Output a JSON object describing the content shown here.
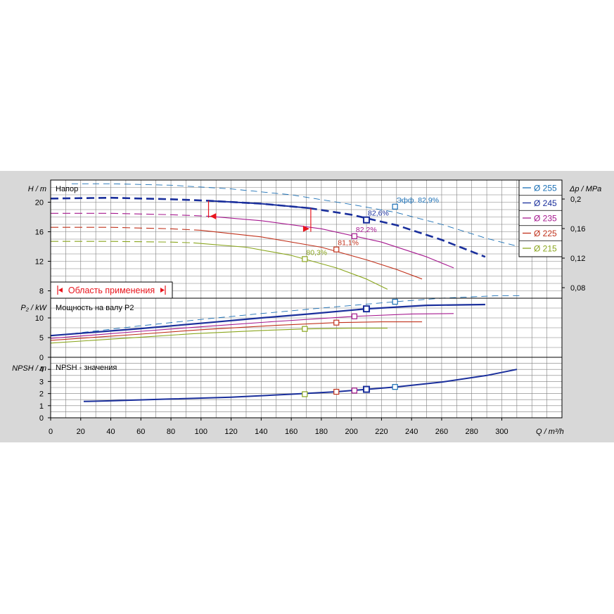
{
  "colors": {
    "panel_bg": "#d8d8d8",
    "plot_bg": "#ffffff",
    "grid": "#7f7f7f",
    "range_red": "#e8141c"
  },
  "chart_data": {
    "type": "line",
    "title": "",
    "xlabel": "Q / m³/h",
    "x_ticks": [
      0,
      20,
      40,
      60,
      80,
      100,
      120,
      140,
      160,
      180,
      200,
      220,
      240,
      260,
      280,
      300
    ],
    "xlim": [
      0,
      340
    ],
    "grid": true,
    "legend_position": "top-right",
    "legend": [
      {
        "label": "Ø 255",
        "color": "#1a6fb5"
      },
      {
        "label": "Ø 245",
        "color": "#1a2f9c"
      },
      {
        "label": "Ø 235",
        "color": "#a6198f"
      },
      {
        "label": "Ø 225",
        "color": "#c1321c"
      },
      {
        "label": "Ø 215",
        "color": "#8aa61e"
      }
    ],
    "head": {
      "label": "H / m",
      "panel_title": "Напор",
      "ylim": [
        7,
        23
      ],
      "y_ticks": [
        8,
        12,
        16,
        20
      ],
      "right_label": "Δp / MPa",
      "right_ticks": [
        "0,08",
        "0,12",
        "0,16",
        "0,2"
      ],
      "series": [
        {
          "name": "Ø 255",
          "color": "#1a6fb5",
          "dash": "thin",
          "x": [
            14,
            40,
            80,
            120,
            160,
            200,
            230,
            260,
            290,
            315
          ],
          "y": [
            22.5,
            22.5,
            22.3,
            21.8,
            21.0,
            19.7,
            18.6,
            17.0,
            15.1,
            13.8
          ]
        },
        {
          "name": "Ø 245",
          "color": "#1a2f9c",
          "dash": "dashed",
          "x": [
            0,
            40,
            80,
            105,
            140,
            172
          ],
          "y": [
            20.5,
            20.6,
            20.4,
            20.2,
            19.8,
            19.2
          ]
        },
        {
          "name": "Ø 245",
          "color": "#1a2f9c",
          "dash": "solid",
          "x": [
            105,
            140,
            172
          ],
          "y": [
            20.2,
            19.8,
            19.2
          ]
        },
        {
          "name": "Ø 245",
          "color": "#1a2f9c",
          "dash": "dashed",
          "x": [
            172,
            200,
            230,
            260,
            289
          ],
          "y": [
            19.2,
            18.3,
            16.9,
            14.9,
            12.6
          ]
        },
        {
          "name": "Ø 235",
          "color": "#a6198f",
          "dash": "dashed",
          "x": [
            0,
            40,
            80,
            105
          ],
          "y": [
            18.5,
            18.5,
            18.3,
            18.1
          ]
        },
        {
          "name": "Ø 235",
          "color": "#a6198f",
          "dash": "solid",
          "x": [
            105,
            140,
            180,
            220,
            250,
            268
          ],
          "y": [
            18.1,
            17.5,
            16.4,
            14.6,
            12.6,
            11.1
          ]
        },
        {
          "name": "Ø 225",
          "color": "#c1321c",
          "dash": "dashed",
          "x": [
            0,
            40,
            80,
            100
          ],
          "y": [
            16.6,
            16.6,
            16.4,
            16.2
          ]
        },
        {
          "name": "Ø 225",
          "color": "#c1321c",
          "dash": "solid",
          "x": [
            100,
            140,
            180,
            210,
            230,
            247
          ],
          "y": [
            16.2,
            15.3,
            13.9,
            12.2,
            10.9,
            9.6
          ]
        },
        {
          "name": "Ø 215",
          "color": "#8aa61e",
          "dash": "dashed",
          "x": [
            0,
            40,
            80,
            95
          ],
          "y": [
            14.7,
            14.7,
            14.6,
            14.5
          ]
        },
        {
          "name": "Ø 215",
          "color": "#8aa61e",
          "dash": "solid",
          "x": [
            95,
            130,
            160,
            190,
            210,
            224
          ],
          "y": [
            14.5,
            13.9,
            12.8,
            11.1,
            9.6,
            8.2
          ]
        }
      ],
      "duty_points": [
        {
          "x": 229,
          "y": 19.4,
          "label": "Эфф.   82,9%",
          "color": "#1a6fb5",
          "big": false
        },
        {
          "x": 210,
          "y": 17.6,
          "label": "82,6%",
          "color": "#1a2f9c",
          "big": true
        },
        {
          "x": 202,
          "y": 15.4,
          "label": "82,2%",
          "color": "#a6198f",
          "big": false
        },
        {
          "x": 190,
          "y": 13.6,
          "label": "81,1%",
          "color": "#c1321c",
          "big": false
        },
        {
          "x": 169,
          "y": 12.3,
          "label": "80,3%",
          "color": "#8aa61e",
          "big": false
        }
      ],
      "operating_range": {
        "label": "Область применения",
        "q_min": 105,
        "q_max": 173
      }
    },
    "power": {
      "label": "P₂ / kW",
      "panel_title": "Мощность на валу P2",
      "ylim": [
        0,
        15
      ],
      "y_ticks": [
        0,
        5,
        10
      ],
      "series": [
        {
          "name": "Ø 255",
          "color": "#1a6fb5",
          "x": [
            14,
            60,
            100,
            140,
            180,
            229,
            260,
            295,
            312
          ],
          "y": [
            6.0,
            8.0,
            9.6,
            11.1,
            12.5,
            14.1,
            15.0,
            15.6,
            15.6
          ]
        },
        {
          "name": "Ø 245",
          "color": "#1a2f9c",
          "x": [
            0,
            60,
            105,
            140,
            172,
            210,
            250,
            289
          ],
          "y": [
            5.5,
            7.3,
            8.8,
            10.0,
            11.0,
            12.3,
            13.2,
            13.4
          ]
        },
        {
          "name": "Ø 235",
          "color": "#a6198f",
          "x": [
            0,
            60,
            105,
            150,
            202,
            240,
            268
          ],
          "y": [
            4.8,
            6.6,
            7.9,
            9.1,
            10.4,
            11.0,
            11.1
          ]
        },
        {
          "name": "Ø 225",
          "color": "#c1321c",
          "x": [
            0,
            60,
            100,
            150,
            190,
            220,
            247
          ],
          "y": [
            4.3,
            5.9,
            7.0,
            8.1,
            8.8,
            9.0,
            9.0
          ]
        },
        {
          "name": "Ø 215",
          "color": "#8aa61e",
          "x": [
            0,
            60,
            95,
            140,
            169,
            200,
            224
          ],
          "y": [
            3.6,
            5.1,
            6.0,
            6.8,
            7.2,
            7.4,
            7.4
          ]
        }
      ],
      "duty_points": [
        {
          "x": 229,
          "y": 14.1,
          "color": "#1a6fb5",
          "big": false
        },
        {
          "x": 210,
          "y": 12.3,
          "color": "#1a2f9c",
          "big": true
        },
        {
          "x": 202,
          "y": 10.4,
          "color": "#a6198f",
          "big": false
        },
        {
          "x": 190,
          "y": 8.8,
          "color": "#c1321c",
          "big": false
        },
        {
          "x": 169,
          "y": 7.2,
          "color": "#8aa61e",
          "big": false
        }
      ]
    },
    "npsh": {
      "label": "NPSH / m",
      "panel_title": "NPSH - значения",
      "ylim": [
        0,
        5
      ],
      "y_ticks": [
        0,
        1,
        2,
        3,
        4
      ],
      "series": [
        {
          "name": "Ø 245",
          "color": "#1a2f9c",
          "x": [
            22,
            40,
            80,
            120,
            160,
            190,
            210,
            230,
            260,
            290,
            310
          ],
          "y": [
            1.35,
            1.4,
            1.55,
            1.7,
            1.95,
            2.15,
            2.35,
            2.55,
            2.95,
            3.5,
            4.0
          ]
        }
      ],
      "duty_points": [
        {
          "x": 229,
          "y": 2.55,
          "color": "#1a6fb5",
          "big": false
        },
        {
          "x": 210,
          "y": 2.35,
          "color": "#1a2f9c",
          "big": true
        },
        {
          "x": 202,
          "y": 2.25,
          "color": "#a6198f",
          "big": false
        },
        {
          "x": 190,
          "y": 2.15,
          "color": "#c1321c",
          "big": false
        },
        {
          "x": 169,
          "y": 1.95,
          "color": "#8aa61e",
          "big": false
        }
      ]
    }
  }
}
